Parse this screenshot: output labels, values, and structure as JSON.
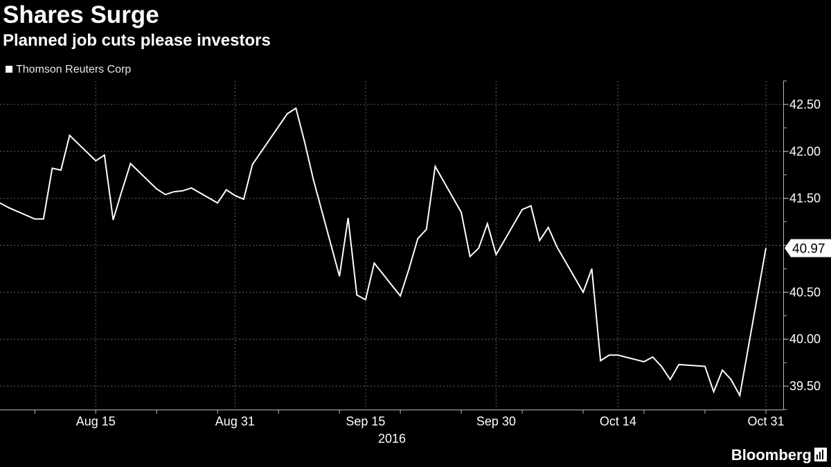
{
  "title": "Shares Surge",
  "subtitle": "Planned job cuts please investors",
  "brand": "Bloomberg",
  "colors": {
    "background": "#000000",
    "line": "#ffffff",
    "grid": "#666666",
    "text": "#ffffff"
  },
  "chart_data": {
    "type": "line",
    "title": "Shares Surge",
    "subtitle": "Planned job cuts please investors",
    "xlabel": "2016",
    "ylabel": "",
    "ylim": [
      39.25,
      42.75
    ],
    "yticks": [
      39.5,
      40.0,
      40.5,
      41.0,
      41.5,
      42.0,
      42.5
    ],
    "ytick_labels": [
      "39.50",
      "40.00",
      "40.50",
      "",
      "41.50",
      "42.00",
      "42.50"
    ],
    "xticks": [
      {
        "date": "2016-08-15",
        "label": "Aug 15"
      },
      {
        "date": "2016-08-31",
        "label": "Aug 31"
      },
      {
        "date": "2016-09-15",
        "label": "Sep 15"
      },
      {
        "date": "2016-09-30",
        "label": "Sep 30"
      },
      {
        "date": "2016-10-14",
        "label": "Oct 14"
      },
      {
        "date": "2016-10-31",
        "label": "Oct 31"
      }
    ],
    "grid": true,
    "legend": "top-left",
    "last_value_label": "40.97",
    "series": [
      {
        "name": "Thomson Reuters Corp",
        "color": "#ffffff",
        "x": [
          "2016-08-04",
          "2016-08-05",
          "2016-08-08",
          "2016-08-09",
          "2016-08-10",
          "2016-08-11",
          "2016-08-12",
          "2016-08-15",
          "2016-08-16",
          "2016-08-17",
          "2016-08-18",
          "2016-08-19",
          "2016-08-22",
          "2016-08-23",
          "2016-08-24",
          "2016-08-25",
          "2016-08-26",
          "2016-08-29",
          "2016-08-30",
          "2016-08-31",
          "2016-09-01",
          "2016-09-02",
          "2016-09-06",
          "2016-09-07",
          "2016-09-08",
          "2016-09-09",
          "2016-09-12",
          "2016-09-13",
          "2016-09-14",
          "2016-09-15",
          "2016-09-16",
          "2016-09-19",
          "2016-09-20",
          "2016-09-21",
          "2016-09-22",
          "2016-09-23",
          "2016-09-26",
          "2016-09-27",
          "2016-09-28",
          "2016-09-29",
          "2016-09-30",
          "2016-10-03",
          "2016-10-04",
          "2016-10-05",
          "2016-10-06",
          "2016-10-07",
          "2016-10-10",
          "2016-10-11",
          "2016-10-12",
          "2016-10-13",
          "2016-10-14",
          "2016-10-17",
          "2016-10-18",
          "2016-10-19",
          "2016-10-20",
          "2016-10-21",
          "2016-10-24",
          "2016-10-25",
          "2016-10-26",
          "2016-10-27",
          "2016-10-28",
          "2016-10-31"
        ],
        "values": [
          41.45,
          41.4,
          41.28,
          41.28,
          41.82,
          41.8,
          42.17,
          41.9,
          41.96,
          41.27,
          41.58,
          41.87,
          41.6,
          41.54,
          41.57,
          41.58,
          41.61,
          41.45,
          41.59,
          41.53,
          41.49,
          41.86,
          42.4,
          42.46,
          42.1,
          41.7,
          40.67,
          41.29,
          40.47,
          40.42,
          40.81,
          40.46,
          40.75,
          41.07,
          41.17,
          41.84,
          41.35,
          40.88,
          40.97,
          41.23,
          40.9,
          41.38,
          41.42,
          41.05,
          41.19,
          40.98,
          40.5,
          40.75,
          39.77,
          39.83,
          39.83,
          39.76,
          39.81,
          39.71,
          39.57,
          39.73,
          39.71,
          39.44,
          39.67,
          39.57,
          39.4,
          40.97
        ]
      }
    ]
  }
}
